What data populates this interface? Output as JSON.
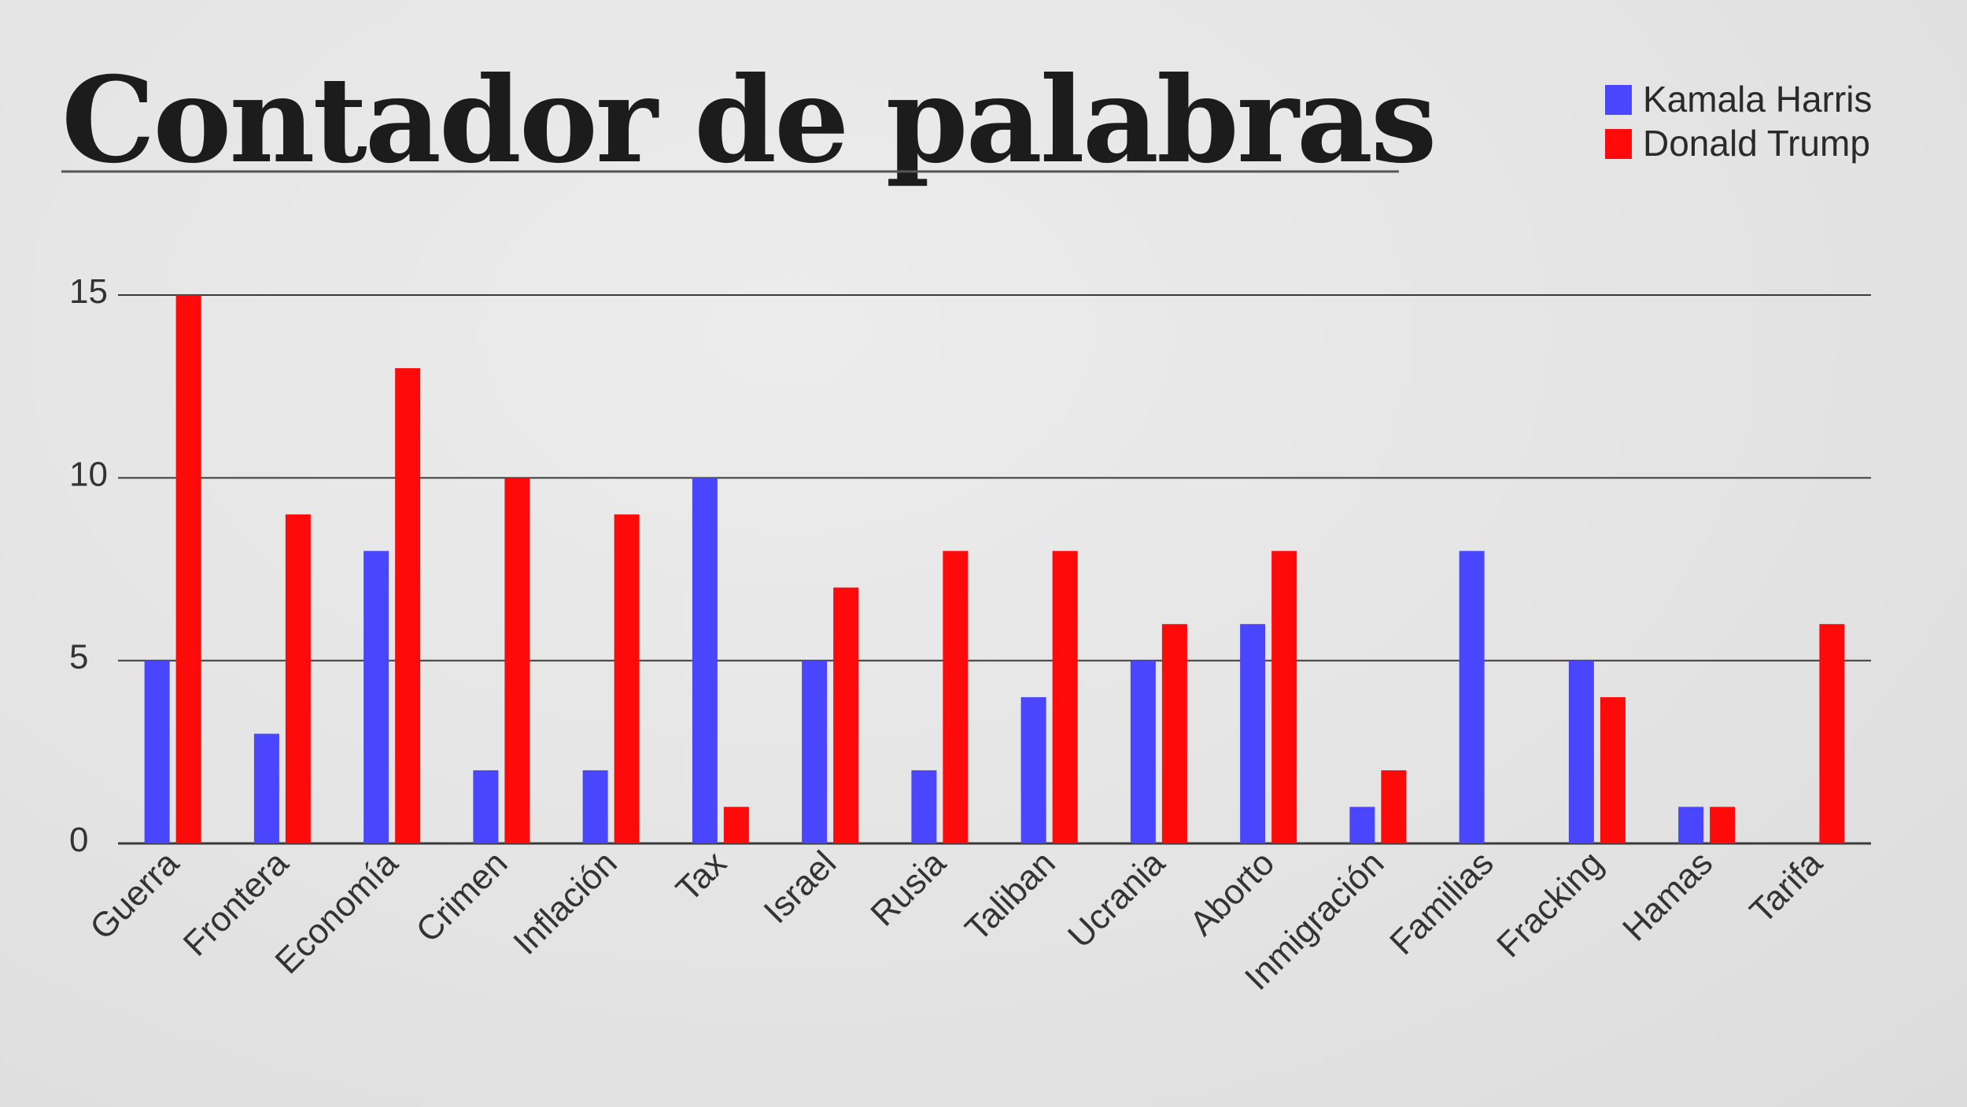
{
  "chart_data": {
    "type": "bar",
    "title": "Contador de palabras",
    "xlabel": "",
    "ylabel": "",
    "ylim": [
      0,
      15
    ],
    "yticks": [
      0,
      5,
      10,
      15
    ],
    "grid": true,
    "legend_position": "top-right",
    "categories": [
      "Guerra",
      "Frontera",
      "Economía",
      "Crimen",
      "Inflación",
      "Tax",
      "Israel",
      "Rusia",
      "Taliban",
      "Ucrania",
      "Aborto",
      "Inmigración",
      "Familias",
      "Fracking",
      "Hamas",
      "Tarifa"
    ],
    "series": [
      {
        "name": "Kamala Harris",
        "color": "#4a46ff",
        "values": [
          5,
          3,
          8,
          2,
          2,
          10,
          5,
          2,
          4,
          5,
          6,
          1,
          8,
          5,
          1,
          0
        ]
      },
      {
        "name": "Donald Trump",
        "color": "#ff0a0a",
        "values": [
          15,
          9,
          13,
          10,
          9,
          1,
          7,
          8,
          8,
          6,
          8,
          2,
          0,
          4,
          1,
          6
        ]
      }
    ]
  }
}
